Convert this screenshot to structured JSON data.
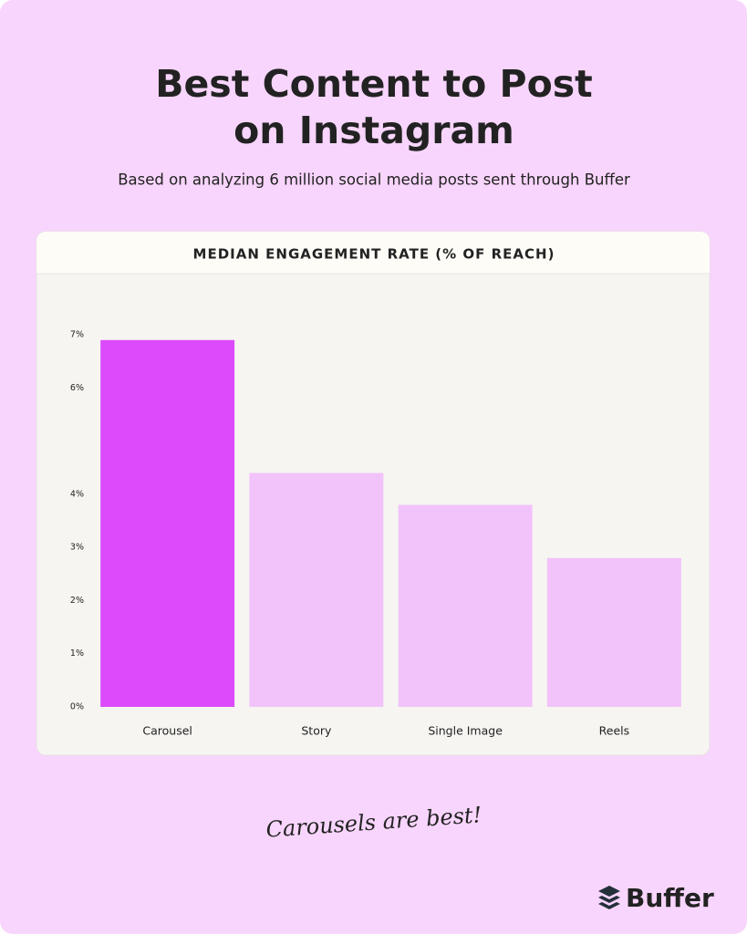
{
  "chart_data": {
    "type": "bar",
    "title_lines": [
      "Best Content to Post",
      "on Instagram"
    ],
    "subtitle": "Based on analyzing 6 million social media posts sent through Buffer",
    "chart_title": "MEDIAN ENGAGEMENT RATE (% OF REACH)",
    "categories": [
      "Carousel",
      "Story",
      "Single Image",
      "Reels"
    ],
    "values": [
      6.9,
      4.4,
      3.8,
      2.8
    ],
    "colors": [
      "#dc4bfb",
      "#f2c2fb",
      "#f2c2fb",
      "#f2c2fb"
    ],
    "ylim": [
      0,
      7
    ],
    "yticks": [
      {
        "value": 0,
        "label": "0%"
      },
      {
        "value": 1,
        "label": "1%"
      },
      {
        "value": 2,
        "label": "2%"
      },
      {
        "value": 3,
        "label": "3%"
      },
      {
        "value": 4,
        "label": "4%"
      },
      {
        "value": 6,
        "label": "6%"
      },
      {
        "value": 7,
        "label": "7%"
      }
    ],
    "grid": false,
    "annotation": "Carousels are best!",
    "brand": "Buffer"
  }
}
